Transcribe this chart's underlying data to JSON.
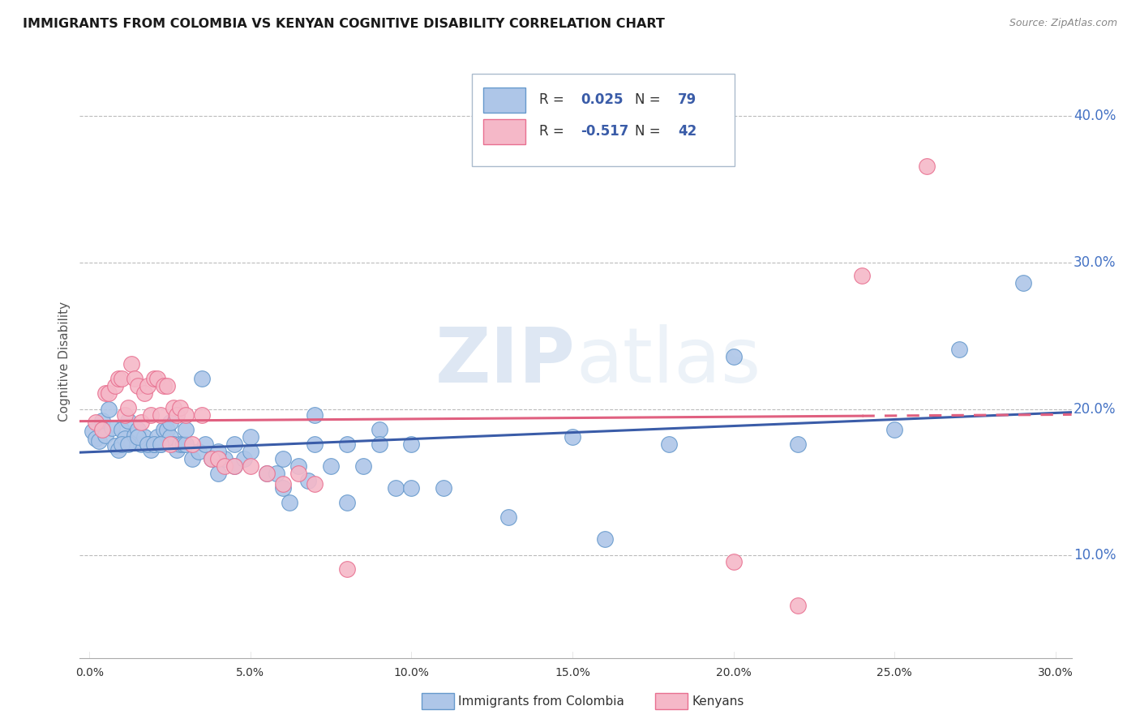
{
  "title": "IMMIGRANTS FROM COLOMBIA VS KENYAN COGNITIVE DISABILITY CORRELATION CHART",
  "source": "Source: ZipAtlas.com",
  "ylabel": "Cognitive Disability",
  "ytick_labels": [
    "10.0%",
    "20.0%",
    "30.0%",
    "40.0%"
  ],
  "ytick_values": [
    0.1,
    0.2,
    0.3,
    0.4
  ],
  "xtick_labels": [
    "0.0%",
    "5.0%",
    "10.0%",
    "15.0%",
    "20.0%",
    "25.0%",
    "30.0%"
  ],
  "xtick_values": [
    0.0,
    0.05,
    0.1,
    0.15,
    0.2,
    0.25,
    0.3
  ],
  "xlim": [
    -0.003,
    0.305
  ],
  "ylim": [
    0.03,
    0.435
  ],
  "colombia_color": "#aec6e8",
  "kenya_color": "#f5b8c8",
  "colombia_edge": "#6699cc",
  "kenya_edge": "#e87090",
  "trend_colombia_color": "#3a5ca8",
  "trend_kenya_color": "#e06080",
  "R_colombia": 0.025,
  "N_colombia": 79,
  "R_kenya": -0.517,
  "N_kenya": 42,
  "watermark_zip": "ZIP",
  "watermark_atlas": "atlas",
  "legend_box_color": "#ccddee",
  "colombia_x": [
    0.001,
    0.002,
    0.003,
    0.004,
    0.005,
    0.006,
    0.007,
    0.008,
    0.009,
    0.01,
    0.011,
    0.012,
    0.013,
    0.014,
    0.015,
    0.016,
    0.017,
    0.018,
    0.019,
    0.02,
    0.021,
    0.022,
    0.023,
    0.024,
    0.025,
    0.026,
    0.027,
    0.028,
    0.029,
    0.03,
    0.032,
    0.034,
    0.036,
    0.038,
    0.04,
    0.042,
    0.045,
    0.048,
    0.05,
    0.055,
    0.058,
    0.06,
    0.062,
    0.065,
    0.068,
    0.07,
    0.075,
    0.08,
    0.085,
    0.09,
    0.01,
    0.012,
    0.015,
    0.018,
    0.02,
    0.022,
    0.025,
    0.03,
    0.035,
    0.04,
    0.045,
    0.05,
    0.06,
    0.07,
    0.08,
    0.09,
    0.1,
    0.15,
    0.18,
    0.2,
    0.22,
    0.25,
    0.27,
    0.29,
    0.095,
    0.1,
    0.11,
    0.13,
    0.16
  ],
  "colombia_y": [
    0.185,
    0.18,
    0.178,
    0.192,
    0.182,
    0.2,
    0.187,
    0.175,
    0.172,
    0.186,
    0.18,
    0.192,
    0.177,
    0.182,
    0.186,
    0.176,
    0.181,
    0.176,
    0.172,
    0.176,
    0.181,
    0.176,
    0.186,
    0.186,
    0.181,
    0.176,
    0.172,
    0.176,
    0.176,
    0.176,
    0.166,
    0.171,
    0.176,
    0.166,
    0.156,
    0.166,
    0.161,
    0.166,
    0.171,
    0.156,
    0.156,
    0.146,
    0.136,
    0.161,
    0.151,
    0.176,
    0.161,
    0.176,
    0.161,
    0.186,
    0.176,
    0.176,
    0.181,
    0.176,
    0.176,
    0.176,
    0.191,
    0.186,
    0.221,
    0.171,
    0.176,
    0.181,
    0.166,
    0.196,
    0.136,
    0.176,
    0.176,
    0.181,
    0.176,
    0.236,
    0.176,
    0.186,
    0.241,
    0.286,
    0.146,
    0.146,
    0.146,
    0.126,
    0.111
  ],
  "kenya_x": [
    0.002,
    0.004,
    0.005,
    0.006,
    0.008,
    0.009,
    0.01,
    0.011,
    0.012,
    0.013,
    0.014,
    0.015,
    0.016,
    0.017,
    0.018,
    0.019,
    0.02,
    0.021,
    0.022,
    0.023,
    0.024,
    0.025,
    0.026,
    0.027,
    0.028,
    0.03,
    0.032,
    0.035,
    0.038,
    0.04,
    0.042,
    0.045,
    0.05,
    0.055,
    0.06,
    0.065,
    0.07,
    0.08,
    0.2,
    0.22,
    0.24,
    0.26
  ],
  "kenya_y": [
    0.191,
    0.186,
    0.211,
    0.211,
    0.216,
    0.221,
    0.221,
    0.196,
    0.201,
    0.231,
    0.221,
    0.216,
    0.191,
    0.211,
    0.216,
    0.196,
    0.221,
    0.221,
    0.196,
    0.216,
    0.216,
    0.176,
    0.201,
    0.196,
    0.201,
    0.196,
    0.176,
    0.196,
    0.166,
    0.166,
    0.161,
    0.161,
    0.161,
    0.156,
    0.149,
    0.156,
    0.149,
    0.091,
    0.096,
    0.066,
    0.291,
    0.366
  ]
}
